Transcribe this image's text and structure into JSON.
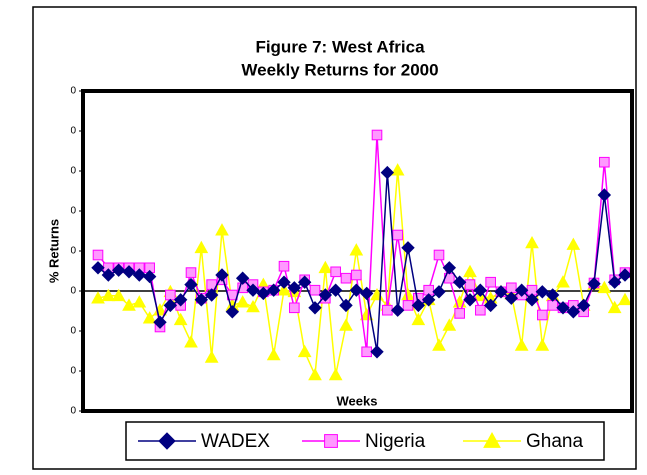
{
  "chart_data": {
    "type": "line",
    "title": [
      "Figure 7: West Africa",
      "Weekly Returns for 2000"
    ],
    "x_label": "Weeks",
    "y_label": "% Returns",
    "categories": [
      null,
      null,
      null,
      null,
      null,
      null,
      null,
      null,
      null,
      null,
      null,
      null,
      null,
      null,
      null,
      null,
      null,
      null,
      null,
      null,
      null,
      null,
      null,
      null,
      null,
      null,
      null,
      null,
      null,
      null,
      null,
      null,
      null,
      null,
      null,
      null,
      null,
      null,
      null,
      null,
      null,
      null,
      null,
      null,
      null,
      null,
      null,
      null,
      null,
      null,
      null,
      null
    ],
    "ylim": [
      -0.15,
      0.25
    ],
    "yticks": [
      {
        "value": -0.15,
        "label": "0"
      },
      {
        "value": -0.1,
        "label": "0"
      },
      {
        "value": -0.05,
        "label": "0"
      },
      {
        "value": 0,
        "label": "0"
      },
      {
        "value": 0.05,
        "label": "0"
      },
      {
        "value": 0.1,
        "label": "0"
      },
      {
        "value": 0.15,
        "label": "0"
      },
      {
        "value": 0.2,
        "label": "0"
      },
      {
        "value": 0.25,
        "label": "0"
      }
    ],
    "legend": "bottom",
    "series": [
      {
        "name": "WADEX",
        "color": "#000080",
        "marker": "diamond",
        "marker_fill": "#000080",
        "values": [
          0.029,
          0.02,
          0.026,
          0.024,
          0.02,
          0.018,
          -0.039,
          -0.018,
          -0.011,
          0.008,
          -0.011,
          -0.005,
          0.02,
          -0.026,
          0.016,
          0.001,
          -0.003,
          0.001,
          0.011,
          0.004,
          0.011,
          -0.021,
          -0.005,
          0.001,
          -0.018,
          0.001,
          -0.003,
          -0.076,
          0.148,
          -0.024,
          0.054,
          -0.018,
          -0.011,
          -0.001,
          0.029,
          0.011,
          -0.011,
          0.001,
          -0.018,
          -0.001,
          -0.009,
          0.001,
          -0.011,
          -0.001,
          -0.005,
          -0.021,
          -0.026,
          -0.018,
          0.009,
          0.12,
          0.011,
          0.02
        ]
      },
      {
        "name": "Nigeria",
        "color": "#ff00ff",
        "marker": "square",
        "marker_fill": "#ff99ff",
        "values": [
          0.045,
          0.029,
          0.029,
          0.029,
          0.029,
          0.029,
          -0.045,
          -0.005,
          -0.018,
          0.023,
          -0.009,
          0.008,
          0.014,
          -0.005,
          0.004,
          0.008,
          -0.001,
          0.001,
          0.031,
          -0.021,
          0.014,
          0.001,
          -0.009,
          0.024,
          0.016,
          0.02,
          -0.076,
          0.195,
          -0.024,
          0.07,
          -0.018,
          -0.009,
          0.001,
          0.045,
          0.016,
          -0.028,
          0.008,
          -0.024,
          0.011,
          -0.001,
          0.004,
          -0.005,
          0.001,
          -0.03,
          -0.018,
          -0.021,
          -0.018,
          -0.026,
          0.01,
          0.161,
          0.014,
          0.023
        ]
      },
      {
        "name": "Ghana",
        "color": "#ffff00",
        "marker": "triangle",
        "marker_fill": "#ffff00",
        "values": [
          -0.009,
          -0.006,
          -0.006,
          -0.018,
          -0.014,
          -0.034,
          -0.024,
          -0.001,
          -0.036,
          -0.064,
          0.054,
          -0.083,
          0.076,
          -0.018,
          -0.014,
          -0.02,
          0.008,
          -0.08,
          0.001,
          -0.001,
          -0.076,
          -0.105,
          0.029,
          -0.105,
          -0.043,
          0.051,
          -0.03,
          -0.005,
          -0.018,
          0.151,
          -0.005,
          -0.036,
          -0.011,
          -0.068,
          -0.043,
          -0.014,
          0.024,
          -0.006,
          -0.009,
          -0.001,
          -0.004,
          -0.068,
          0.06,
          -0.068,
          -0.006,
          0.011,
          0.058,
          -0.018,
          0.008,
          0.004,
          -0.021,
          -0.011
        ]
      }
    ]
  }
}
